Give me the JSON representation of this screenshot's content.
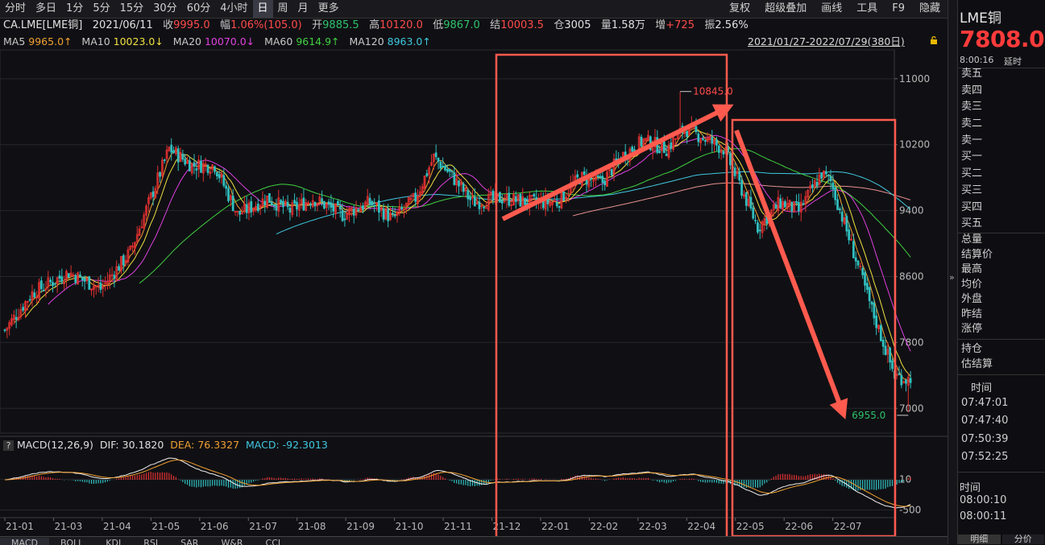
{
  "toolbar": {
    "periods": [
      "分时",
      "多日",
      "1分",
      "5分",
      "15分",
      "30分",
      "60分",
      "4小时",
      "日",
      "周",
      "月",
      "更多"
    ],
    "active_period": "日",
    "right": [
      "复权",
      "超级叠加",
      "画线",
      "工具",
      "F9",
      "隐藏"
    ]
  },
  "info": {
    "symbol": "CA.LME[LME铜]",
    "date": "2021/06/11",
    "close_label": "收",
    "close": "9995.0",
    "range_label": "幅",
    "range": "1.06%(105.0)",
    "open_label": "开",
    "open": "9885.5",
    "high_label": "高",
    "high": "10120.0",
    "low_label": "低",
    "low": "9867.0",
    "settle_label": "结",
    "settle": "10003.5",
    "oi_label": "仓",
    "oi": "3005",
    "vol_label": "量",
    "vol": "1.58万",
    "chg_label": "增",
    "chg": "+725",
    "amp_label": "振",
    "amp": "2.56%"
  },
  "ma": {
    "ma5_label": "MA5",
    "ma5": "9965.0↑",
    "ma10_label": "MA10",
    "ma10": "10023.0↓",
    "ma20_label": "MA20",
    "ma20": "10070.0↓",
    "ma60_label": "MA60",
    "ma60": "9614.9↑",
    "ma120_label": "MA120",
    "ma120": "8963.0↑"
  },
  "date_range": "2021/01/27-2022/07/29(380日)",
  "macd": {
    "q": "?",
    "title": "MACD(12,26,9)",
    "dif_label": "DIF:",
    "dif": "30.1820",
    "dea_label": "DEA:",
    "dea": "76.3327",
    "macd_label": "MACD:",
    "macd": "-92.3013"
  },
  "chart_data": {
    "type": "candlestick",
    "y_ticks": [
      "11000",
      "10200",
      "9400",
      "8600",
      "7800",
      "7000"
    ],
    "y_ticks_values": [
      11000,
      10200,
      9400,
      8600,
      7800,
      7000
    ],
    "macd_ticks": [
      "10",
      "-500"
    ],
    "x_ticks": [
      "21-01",
      "21-03",
      "21-04",
      "21-05",
      "21-06",
      "21-07",
      "21-08",
      "21-09",
      "21-10",
      "21-11",
      "21-12",
      "22-01",
      "22-02",
      "22-03",
      "22-04",
      "22-05",
      "22-06",
      "22-07"
    ],
    "max_label": "10845.0",
    "min_label": "6955.0",
    "close_anchors": [
      [
        0,
        7950
      ],
      [
        12,
        8400
      ],
      [
        28,
        8650
      ],
      [
        42,
        8450
      ],
      [
        55,
        8900
      ],
      [
        72,
        10150
      ],
      [
        82,
        9950
      ],
      [
        92,
        9950
      ],
      [
        102,
        9350
      ],
      [
        115,
        9550
      ],
      [
        125,
        9400
      ],
      [
        135,
        9550
      ],
      [
        148,
        9350
      ],
      [
        160,
        9500
      ],
      [
        170,
        9300
      ],
      [
        180,
        9550
      ],
      [
        188,
        10050
      ],
      [
        195,
        9850
      ],
      [
        205,
        9500
      ],
      [
        218,
        9550
      ],
      [
        230,
        9500
      ],
      [
        242,
        9500
      ],
      [
        252,
        9800
      ],
      [
        262,
        9750
      ],
      [
        270,
        10050
      ],
      [
        280,
        10250
      ],
      [
        290,
        10150
      ],
      [
        298,
        10400
      ],
      [
        305,
        10300
      ],
      [
        315,
        10150
      ],
      [
        320,
        9850
      ],
      [
        330,
        9200
      ],
      [
        340,
        9500
      ],
      [
        348,
        9400
      ],
      [
        358,
        9850
      ],
      [
        362,
        9750
      ],
      [
        372,
        8900
      ],
      [
        380,
        8200
      ],
      [
        390,
        7400
      ],
      [
        396,
        7350
      ],
      [
        400,
        7500
      ],
      [
        405,
        7800
      ]
    ],
    "ma_colors": {
      "ma5": "#f0a030",
      "ma10": "#f0e040",
      "ma20": "#e040e0",
      "ma60": "#40d040",
      "ma120": "#40c8e0",
      "ma250": "#e89090"
    },
    "up_color": "#e03030",
    "down_color": "#30c0c0",
    "annotation_color": "#ff5a4e"
  },
  "panel": {
    "name": "LME铜",
    "price": "7808.0",
    "time": "8:00:16",
    "delay": "延时",
    "ask_bid": [
      "卖五",
      "卖四",
      "卖三",
      "卖二",
      "卖一",
      "买一",
      "买二",
      "买三",
      "买四",
      "买五"
    ],
    "stats": [
      "总量",
      "结算价",
      "最高",
      "均价",
      "外盘",
      "昨结",
      "涨停"
    ],
    "stats2": [
      "持仓",
      "估结算"
    ],
    "times_header": "时间",
    "times": [
      "07:47:01",
      "07:47:40",
      "07:50:39",
      "07:52:25"
    ],
    "times2_header": "时间",
    "times2": [
      "08:00:10",
      "08:00:11"
    ],
    "tabs": [
      "明细",
      "分价"
    ]
  },
  "bottom_tabs": [
    "MACD",
    "BOLL",
    "KDJ",
    "RSI",
    "SAR",
    "W&R",
    "CCI"
  ]
}
